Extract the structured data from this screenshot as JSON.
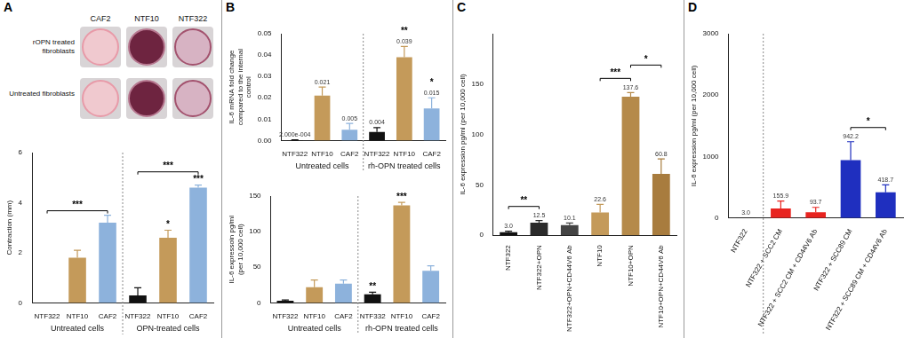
{
  "photo": {
    "columns": [
      "CAF2",
      "NTF10",
      "NTF322"
    ],
    "rows": [
      "rOPN treated fibroblasts",
      "Untreated fibroblasts"
    ]
  },
  "chart_data": [
    {
      "panel": "A",
      "type": "bar",
      "categories": [
        "NTF322",
        "NTF10",
        "CAF2",
        "NTF322",
        "NTF10",
        "CAF2"
      ],
      "values": [
        0,
        1.8,
        3.2,
        0.3,
        2.6,
        4.6
      ],
      "errors": [
        0,
        0.3,
        0.3,
        0.3,
        0.3,
        0.1
      ],
      "colors": [
        "#111111",
        "#c49a5a",
        "#8db2dc",
        "#111111",
        "#c49a5a",
        "#8db2dc"
      ],
      "y_label": "Contraction (mm)",
      "ylim": [
        0,
        6
      ],
      "yticks": [
        0,
        2,
        4,
        6
      ],
      "grid": false,
      "data_labels": false,
      "annotations": [
        {
          "text": "*",
          "from": 4,
          "to": 4
        },
        {
          "text": "***",
          "from": 5,
          "to": 5
        },
        {
          "text": "***",
          "from": 0,
          "to": 2
        },
        {
          "text": "***",
          "from": 3,
          "to": 5
        }
      ],
      "groups": [
        {
          "label": "Untreated cells",
          "start": 0,
          "end": 2
        },
        {
          "label": "OPN-treated cells",
          "start": 3,
          "end": 5
        }
      ]
    },
    {
      "panel": "B",
      "type": "bar",
      "categories": [
        "NTF322",
        "NTF10",
        "CAF2",
        "NTF322",
        "NTF10",
        "CAF2"
      ],
      "values": [
        0.0002,
        0.021,
        0.005,
        0.004,
        0.039,
        0.015
      ],
      "value_labels": [
        "2.000e-004",
        "0.021",
        "0.005",
        "0.004",
        "0.039",
        "0.015"
      ],
      "errors": [
        0.0001,
        0.004,
        0.003,
        0.002,
        0.005,
        0.005
      ],
      "colors": [
        "#111111",
        "#c49a5a",
        "#8db2dc",
        "#111111",
        "#c49a5a",
        "#8db2dc"
      ],
      "y_label": "IL-6 mRNA fold change compared to the internal control",
      "ylim": [
        0,
        0.05
      ],
      "yticks": [
        {
          "value": 0,
          "label": "0.00"
        },
        {
          "value": 0.01,
          "label": "0.01"
        },
        {
          "value": 0.02,
          "label": "0.02"
        },
        {
          "value": 0.03,
          "label": "0.03"
        },
        {
          "value": 0.04,
          "label": "0.04"
        },
        {
          "value": 0.05,
          "label": "0.05"
        }
      ],
      "grid": false,
      "data_labels": true,
      "annotations": [
        {
          "text": "**",
          "from": 4,
          "to": 4
        },
        {
          "text": "*",
          "from": 5,
          "to": 5
        }
      ],
      "groups": [
        {
          "label": "Untreated cells",
          "start": 0,
          "end": 2
        },
        {
          "label": "rh-OPN treated cells",
          "start": 3,
          "end": 5
        }
      ]
    },
    {
      "type": "bar",
      "categories": [
        "NTF322",
        "NTF10",
        "CAF2",
        "NTF332",
        "NTF10",
        "CAF2"
      ],
      "values": [
        3,
        22,
        27,
        12,
        137,
        45
      ],
      "errors": [
        1,
        10,
        5,
        3,
        4,
        7
      ],
      "colors": [
        "#111111",
        "#c49a5a",
        "#8db2dc",
        "#111111",
        "#c49a5a",
        "#8db2dc"
      ],
      "y_label": "IL-6 expressoin pg/ml (per 10,000 cell)",
      "ylim": [
        0,
        150
      ],
      "yticks": [
        0,
        50,
        100,
        150
      ],
      "grid": false,
      "data_labels": false,
      "annotations": [
        {
          "text": "**",
          "from": 3,
          "to": 3
        },
        {
          "text": "***",
          "from": 4,
          "to": 4
        }
      ],
      "groups": [
        {
          "label": "Untreated cells",
          "start": 0,
          "end": 2
        },
        {
          "label": "rh-OPN treated cells",
          "start": 3,
          "end": 5
        }
      ]
    },
    {
      "panel": "C",
      "type": "bar",
      "categories": [
        "NTF322",
        "NTF322+OPN",
        "NTF322+OPN+CD44V6 Ab",
        "NTF10",
        "NTF10+OPN",
        "NTF10+OPN+CD44V6 Ab"
      ],
      "values": [
        3.0,
        12.5,
        10.1,
        22.6,
        137.6,
        60.8
      ],
      "value_labels": [
        "3.0",
        "12.5",
        "10.1",
        "22.6",
        "137.6",
        "60.8"
      ],
      "errors": [
        1,
        2,
        2,
        8,
        4,
        15
      ],
      "colors": [
        "#111111",
        "#2b2b2b",
        "#444444",
        "#c49a5a",
        "#b58a4a",
        "#a87c3e"
      ],
      "y_label": "IL-6 expression pg/ml (per 10,000 cell)",
      "ylim": [
        0,
        200
      ],
      "yticks": [
        0,
        50,
        100,
        150
      ],
      "grid": false,
      "data_labels": true,
      "annotations": [
        {
          "text": "**",
          "from": 0,
          "to": 1
        },
        {
          "text": "***",
          "from": 3,
          "to": 4
        },
        {
          "text": "*",
          "from": 4,
          "to": 5
        }
      ]
    },
    {
      "panel": "D",
      "type": "bar",
      "categories": [
        "NTF322",
        "NTF322 + SCC2 CM",
        "NTF322 + SCC2 CM + CD44V6 Ab",
        "NTF322 + SCC89 CM",
        "NTF322 + SCC89 CM + CD44V6 Ab"
      ],
      "values": [
        3.0,
        155.9,
        93.7,
        942.2,
        418.7
      ],
      "value_labels": [
        "3.0",
        "155.9",
        "93.7",
        "942.2",
        "418.7"
      ],
      "errors": [
        0,
        120,
        80,
        300,
        120
      ],
      "colors": [
        "#111111",
        "#e8231f",
        "#e8231f",
        "#1f2fbf",
        "#1f2fbf"
      ],
      "y_label": "IL-6 expression pg/ml (per 10,000 cell)",
      "ylim": [
        0,
        3000
      ],
      "yticks": [
        0,
        1000,
        2000,
        3000
      ],
      "grid": false,
      "data_labels": true,
      "annotations": [
        {
          "text": "*",
          "from": 3,
          "to": 4
        }
      ],
      "groups": [
        {
          "start": 0,
          "end": 0
        },
        {
          "start": 1,
          "end": 4
        }
      ]
    }
  ]
}
